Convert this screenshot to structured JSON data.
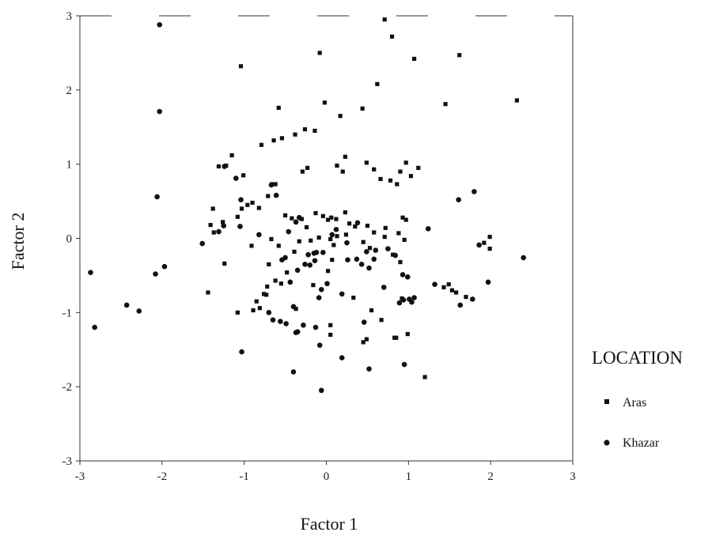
{
  "chart_data": {
    "type": "scatter",
    "title": "",
    "xlabel": "Factor 1",
    "ylabel": "Factor 2",
    "xlim": [
      -3,
      3
    ],
    "ylim": [
      -3,
      3
    ],
    "xticks": [
      "-3",
      "-2",
      "-1",
      "0",
      "1",
      "2",
      "3"
    ],
    "yticks": [
      "-3",
      "-2",
      "-1",
      "0",
      "1",
      "2",
      "3"
    ],
    "grid": false,
    "legend": {
      "title": "LOCATION",
      "placement": "right",
      "entries": [
        {
          "name": "Aras",
          "marker": "square"
        },
        {
          "name": "Khazar",
          "marker": "circle"
        }
      ]
    },
    "series": [
      {
        "name": "Aras",
        "marker": "square",
        "color": "#111111",
        "x": [
          -1.04,
          -0.08,
          0.71,
          0.8,
          1.07,
          1.62,
          0.62,
          1.45,
          2.32,
          -0.58,
          -0.02,
          0.17,
          0.44,
          0.23,
          -0.26,
          -0.14,
          -0.38,
          -0.54,
          -0.64,
          -0.79,
          -1.15,
          -1.22,
          -1.31,
          -1.01,
          -0.29,
          -0.23,
          0.13,
          0.2,
          0.49,
          0.58,
          0.66,
          0.78,
          0.86,
          0.9,
          0.97,
          1.03,
          1.12,
          -1.38,
          -0.9,
          -0.96,
          -0.66,
          -0.62,
          -0.71,
          -1.03,
          -1.08,
          -1.26,
          -1.41,
          -1.37,
          -0.82,
          -0.5,
          -0.42,
          -0.3,
          -0.24,
          -0.13,
          -0.04,
          0.02,
          0.06,
          0.12,
          0.23,
          0.28,
          0.35,
          0.5,
          0.58,
          0.72,
          0.88,
          0.93,
          0.97,
          -0.91,
          -0.67,
          -0.58,
          -0.7,
          -0.48,
          -0.39,
          -0.33,
          -0.19,
          -0.09,
          0.05,
          0.09,
          0.13,
          0.24,
          0.45,
          0.53,
          0.71,
          0.81,
          0.9,
          0.95,
          1.43,
          1.49,
          1.53,
          1.58,
          1.7,
          1.92,
          1.99,
          1.99,
          -1.24,
          -1.44,
          -0.85,
          -0.76,
          -0.72,
          -0.62,
          -0.55,
          -0.16,
          0.02,
          0.07,
          0.33,
          0.92,
          -0.81,
          -0.37,
          -1.08,
          -0.89,
          -0.73,
          0.55,
          0.67,
          0.83,
          1.2,
          0.05,
          0.05,
          0.49,
          0.45,
          0.85,
          0.99
        ],
        "y": [
          2.32,
          2.5,
          2.95,
          2.72,
          2.42,
          2.47,
          2.08,
          1.81,
          1.86,
          1.76,
          1.83,
          1.65,
          1.75,
          1.1,
          1.47,
          1.45,
          1.4,
          1.35,
          1.32,
          1.26,
          1.12,
          0.98,
          0.97,
          0.85,
          0.9,
          0.95,
          0.98,
          0.9,
          1.02,
          0.93,
          0.8,
          0.78,
          0.73,
          0.9,
          1.02,
          0.84,
          0.95,
          0.4,
          0.48,
          0.45,
          0.73,
          0.73,
          0.57,
          0.4,
          0.29,
          0.22,
          0.18,
          0.08,
          0.41,
          0.31,
          0.27,
          0.26,
          0.15,
          0.34,
          0.3,
          0.25,
          0.28,
          0.26,
          0.35,
          0.2,
          0.16,
          0.17,
          0.08,
          0.14,
          0.07,
          0.28,
          0.25,
          -0.1,
          -0.01,
          -0.1,
          -0.35,
          -0.46,
          -0.18,
          -0.04,
          -0.03,
          0.01,
          -0.01,
          -0.09,
          0.03,
          0.05,
          -0.05,
          -0.13,
          0.02,
          -0.22,
          -0.32,
          -0.02,
          -0.66,
          -0.62,
          -0.7,
          -0.73,
          -0.79,
          -0.06,
          -0.14,
          0.02,
          -0.34,
          -0.73,
          -0.85,
          -0.75,
          -0.65,
          -0.57,
          -0.61,
          -0.63,
          -0.44,
          -0.29,
          -0.8,
          -0.81,
          -0.94,
          -0.95,
          -1.0,
          -0.97,
          -0.76,
          -0.97,
          -1.1,
          -1.34,
          -1.87,
          -1.17,
          -1.3,
          -1.36,
          -1.4,
          -1.34,
          -1.29
        ]
      },
      {
        "name": "Khazar",
        "marker": "circle",
        "color": "#111111",
        "x": [
          -2.03,
          -2.03,
          -2.06,
          -2.08,
          -1.97,
          -2.87,
          -2.82,
          -2.43,
          -2.28,
          -1.51,
          -1.31,
          -1.24,
          -1.04,
          -1.1,
          -1.25,
          -1.05,
          -0.82,
          -0.61,
          -0.67,
          -0.46,
          -0.37,
          -0.33,
          -0.22,
          -0.15,
          -0.12,
          -0.04,
          0.07,
          0.12,
          0.25,
          0.38,
          0.49,
          0.52,
          0.6,
          0.75,
          0.84,
          0.93,
          0.99,
          1.07,
          1.24,
          1.61,
          1.8,
          1.86,
          2.4,
          -0.54,
          -0.5,
          -0.44,
          -0.35,
          -0.26,
          -0.2,
          -0.14,
          -0.09,
          -0.06,
          0.01,
          0.19,
          0.26,
          0.37,
          0.43,
          0.58,
          0.7,
          0.89,
          0.94,
          1.01,
          1.04,
          1.32,
          1.63,
          1.78,
          1.97,
          -0.56,
          -0.4,
          -0.35,
          -0.28,
          -0.13,
          -0.08,
          0.19,
          0.52,
          0.95,
          -0.4,
          -0.06,
          0.46,
          -0.7,
          -0.49,
          -0.37,
          -1.03,
          -0.65
        ],
        "y": [
          2.88,
          1.71,
          0.56,
          -0.48,
          -0.38,
          -0.46,
          -1.2,
          -0.9,
          -0.98,
          -0.07,
          0.09,
          0.97,
          0.52,
          0.81,
          0.17,
          0.16,
          0.05,
          0.58,
          0.72,
          0.09,
          0.22,
          0.28,
          -0.22,
          -0.2,
          -0.19,
          -0.19,
          0.05,
          0.12,
          -0.06,
          0.21,
          -0.18,
          -0.4,
          -0.16,
          -0.14,
          -0.23,
          -0.49,
          -0.52,
          -0.8,
          0.13,
          0.52,
          0.63,
          -0.09,
          -0.26,
          -0.29,
          -0.26,
          -0.59,
          -0.43,
          -0.35,
          -0.36,
          -0.3,
          -0.8,
          -0.69,
          -0.61,
          -0.75,
          -0.29,
          -0.28,
          -0.35,
          -0.28,
          -0.66,
          -0.87,
          -0.83,
          -0.82,
          -0.86,
          -0.62,
          -0.9,
          -0.82,
          -0.59,
          -1.12,
          -0.92,
          -1.26,
          -1.17,
          -1.2,
          -1.44,
          -1.61,
          -1.76,
          -1.7,
          -1.8,
          -2.05,
          -1.13,
          -1.0,
          -1.15,
          -1.27,
          -1.53,
          -1.1
        ]
      }
    ]
  }
}
